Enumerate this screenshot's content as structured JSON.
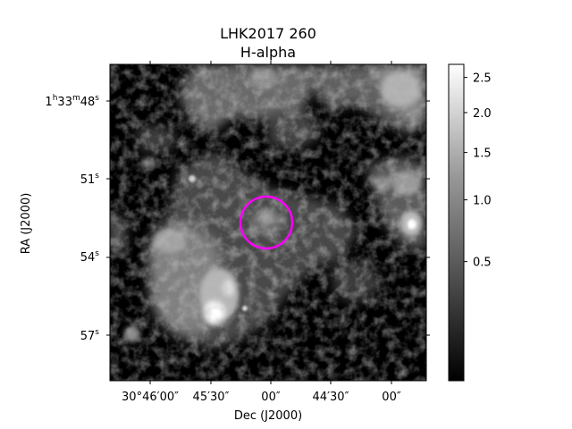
{
  "figure": {
    "title_line1": "LHK2017 260",
    "title_line2": "H-alpha",
    "xlabel": "Dec (J2000)",
    "ylabel": "RA (J2000)",
    "x_ticks": [
      "30°46′00″",
      "45′30″",
      "00″",
      "44′30″",
      "00″"
    ],
    "y_ticks": [
      {
        "main": "1",
        "sup1": "h",
        "mid": "33",
        "sup2": "m",
        "tail": "48",
        "sup3": "s"
      },
      {
        "main": "51",
        "sup3": "s"
      },
      {
        "main": "54",
        "sup3": "s"
      },
      {
        "main": "57",
        "sup3": "s"
      }
    ],
    "colorbar": {
      "ticks": [
        "2.5",
        "2.0",
        "1.5",
        "1.0",
        "0.5"
      ],
      "tick_values": [
        2.5,
        2.0,
        1.5,
        1.0,
        0.5
      ],
      "range": [
        0.02,
        2.7
      ],
      "colormap": "gray"
    },
    "aperture": {
      "color": "#ff00ff"
    }
  }
}
